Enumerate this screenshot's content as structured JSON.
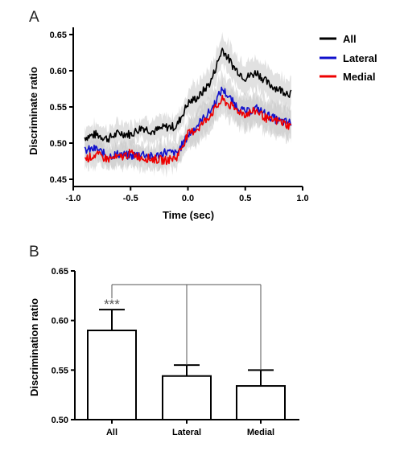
{
  "chart_data": [
    {
      "panel": "A",
      "type": "line",
      "xlabel": "Time (sec)",
      "ylabel": "Discriminate ratio",
      "xlim": [
        -1.0,
        1.0
      ],
      "ylim": [
        0.44,
        0.66
      ],
      "xticks": [
        -1.0,
        -0.5,
        0.0,
        0.5,
        1.0
      ],
      "xtick_labels": [
        "-1.0",
        "-0.5",
        "0.0",
        "0.5",
        "1.0"
      ],
      "yticks": [
        0.45,
        0.5,
        0.55,
        0.6,
        0.65
      ],
      "ytick_labels": [
        "0.45",
        "0.50",
        "0.55",
        "0.60",
        "0.65"
      ],
      "legend_position": "right",
      "error_band_color": "#c8c8c8",
      "series": [
        {
          "name": "All",
          "color": "#000000",
          "x": [
            -0.9,
            -0.8,
            -0.7,
            -0.6,
            -0.5,
            -0.4,
            -0.3,
            -0.2,
            -0.1,
            0.0,
            0.1,
            0.2,
            0.3,
            0.4,
            0.5,
            0.6,
            0.7,
            0.8,
            0.9
          ],
          "values": [
            0.508,
            0.512,
            0.506,
            0.514,
            0.512,
            0.522,
            0.516,
            0.522,
            0.523,
            0.555,
            0.565,
            0.585,
            0.63,
            0.605,
            0.59,
            0.598,
            0.582,
            0.574,
            0.568
          ]
        },
        {
          "name": "Lateral",
          "color": "#1010cc",
          "x": [
            -0.9,
            -0.8,
            -0.7,
            -0.6,
            -0.5,
            -0.4,
            -0.3,
            -0.2,
            -0.1,
            0.0,
            0.1,
            0.2,
            0.3,
            0.4,
            0.5,
            0.6,
            0.7,
            0.8,
            0.9
          ],
          "values": [
            0.49,
            0.492,
            0.482,
            0.485,
            0.482,
            0.486,
            0.48,
            0.488,
            0.485,
            0.51,
            0.528,
            0.545,
            0.575,
            0.555,
            0.542,
            0.548,
            0.538,
            0.53,
            0.528
          ]
        },
        {
          "name": "Medial",
          "color": "#ee0000",
          "x": [
            -0.9,
            -0.8,
            -0.7,
            -0.6,
            -0.5,
            -0.4,
            -0.3,
            -0.2,
            -0.1,
            0.0,
            0.1,
            0.2,
            0.3,
            0.4,
            0.5,
            0.6,
            0.7,
            0.8,
            0.9
          ],
          "values": [
            0.478,
            0.484,
            0.478,
            0.48,
            0.486,
            0.48,
            0.478,
            0.476,
            0.48,
            0.512,
            0.522,
            0.54,
            0.56,
            0.548,
            0.54,
            0.545,
            0.532,
            0.53,
            0.523
          ]
        }
      ]
    },
    {
      "panel": "B",
      "type": "bar",
      "ylabel": "Discrimination ratio",
      "ylim": [
        0.5,
        0.65
      ],
      "yticks": [
        0.5,
        0.55,
        0.6,
        0.65
      ],
      "ytick_labels": [
        "0.50",
        "0.55",
        "0.60",
        "0.65"
      ],
      "categories": [
        "All",
        "Lateral",
        "Medial"
      ],
      "values": [
        0.59,
        0.544,
        0.534
      ],
      "errors": [
        0.021,
        0.011,
        0.016
      ],
      "significance_label": "***",
      "bar_fill": "#ffffff",
      "bar_stroke": "#000000"
    }
  ]
}
